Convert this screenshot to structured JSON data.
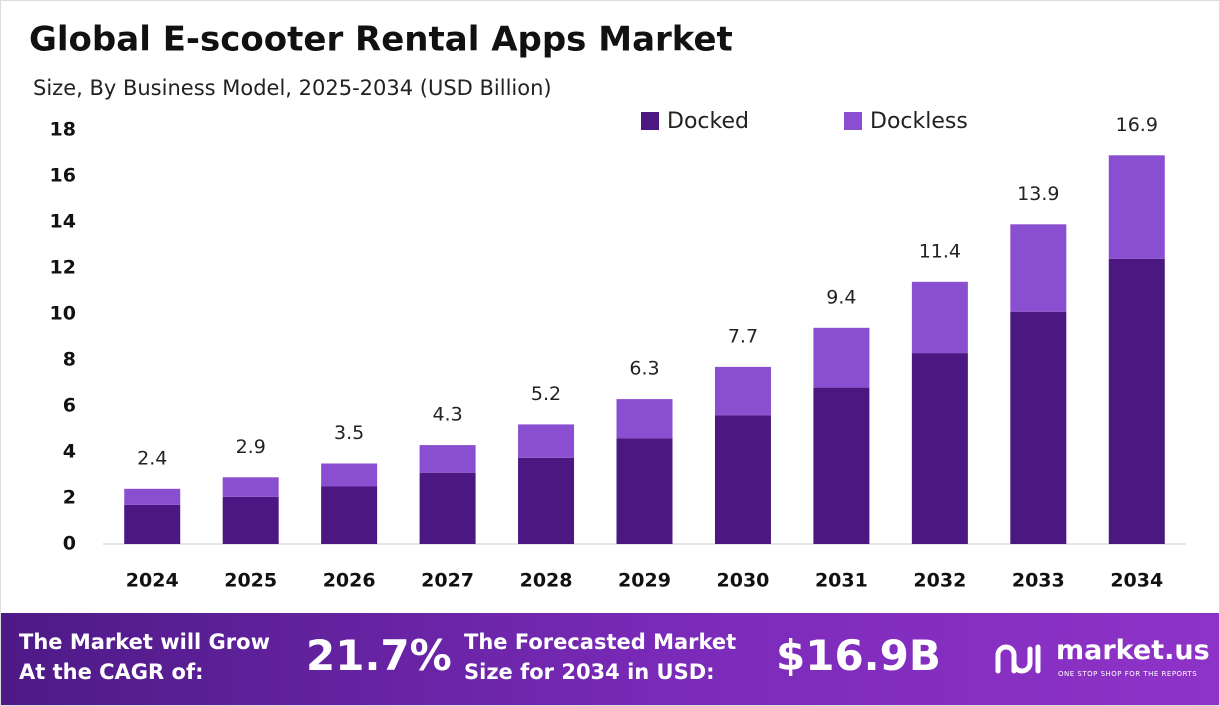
{
  "chart_data": {
    "type": "bar",
    "stacked": true,
    "title": "Global E-scooter Rental Apps Market",
    "subtitle": "Size, By Business Model, 2025-2034 (USD Billion)",
    "categories": [
      "2024",
      "2025",
      "2026",
      "2027",
      "2028",
      "2029",
      "2030",
      "2031",
      "2032",
      "2033",
      "2034"
    ],
    "series": [
      {
        "name": "Docked",
        "color": "#4b1780",
        "values": [
          1.7,
          2.05,
          2.5,
          3.1,
          3.75,
          4.6,
          5.6,
          6.8,
          8.3,
          10.1,
          12.4
        ]
      },
      {
        "name": "Dockless",
        "color": "#8a4fd0",
        "values": [
          0.7,
          0.85,
          1.0,
          1.2,
          1.45,
          1.7,
          2.1,
          2.6,
          3.1,
          3.8,
          4.5
        ]
      }
    ],
    "total_labels": [
      2.4,
      2.9,
      3.5,
      4.3,
      5.2,
      6.3,
      7.7,
      9.4,
      11.4,
      13.9,
      16.9
    ],
    "ylim": [
      0,
      18
    ],
    "yticks": [
      0,
      2,
      4,
      6,
      8,
      10,
      12,
      14,
      16,
      18
    ],
    "grid": false
  },
  "footer": {
    "cagr_text": [
      "The Market will Grow",
      "At the CAGR of:"
    ],
    "cagr_value": "21.7%",
    "forecast_text": [
      "The Forecasted Market",
      "Size for 2034 in USD:"
    ],
    "forecast_value": "$16.9B",
    "brand": "market.us",
    "tagline": "ONE STOP SHOP FOR THE REPORTS"
  }
}
